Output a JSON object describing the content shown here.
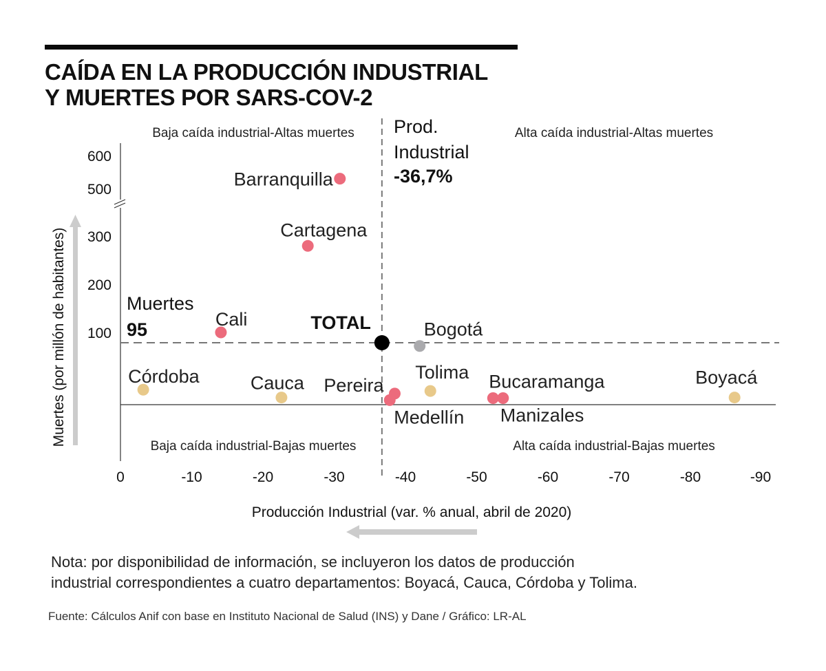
{
  "title": "CAÍDA EN LA PRODUCCIÓN INDUSTRIAL\nY MUERTES POR SARS-COV-2",
  "colors": {
    "high_deaths_city": "#ec6b7c",
    "department": "#e8c98a",
    "bogota": "#aaaaad",
    "total": "#000000",
    "arrow": "#cccccc",
    "reference_line": "#777777"
  },
  "chart_data": {
    "type": "scatter",
    "title": "CAÍDA EN LA PRODUCCIÓN INDUSTRIAL Y MUERTES POR SARS-COV-2",
    "xlabel": "Producción Industrial (var. % anual, abril de 2020)",
    "ylabel": "Muertes (por millón de habitantes)",
    "xlim": [
      0,
      -92
    ],
    "ylim": [
      0,
      620
    ],
    "y_axis_break": [
      330,
      480
    ],
    "x_ticks": [
      "0",
      "-10",
      "-20",
      "-30",
      "-40",
      "-50",
      "-60",
      "-70",
      "-80",
      "-90"
    ],
    "x_tick_values": [
      0,
      -10,
      -20,
      -30,
      -40,
      -50,
      -60,
      -70,
      -80,
      -90
    ],
    "y_ticks": [
      "100",
      "200",
      "300",
      "500",
      "600"
    ],
    "y_tick_values": [
      100,
      200,
      300,
      500,
      600
    ],
    "grid": false,
    "reference_lines": {
      "x": {
        "value": -36.7,
        "label_lines": [
          "Prod.",
          "Industrial",
          "-36,7%"
        ]
      },
      "y": {
        "value": 95,
        "label_lines": [
          "Muertes",
          "95"
        ]
      }
    },
    "quadrants": {
      "top_left": "Baja caída industrial-Altas muertes",
      "top_right": "Alta caída industrial-Altas muertes",
      "bottom_left": "Baja caída industrial-Bajas muertes",
      "bottom_right": "Alta caída industrial-Bajas muertes"
    },
    "points": [
      {
        "name": "Barranquilla",
        "x": -30.8,
        "y": 530,
        "group": "city"
      },
      {
        "name": "Cartagena",
        "x": -26.3,
        "y": 296,
        "group": "city"
      },
      {
        "name": "Cali",
        "x": -14.1,
        "y": 100,
        "group": "city"
      },
      {
        "name": "TOTAL",
        "x": -36.7,
        "y": 95,
        "group": "total"
      },
      {
        "name": "Bogotá",
        "x": -42.0,
        "y": 90,
        "group": "bogota"
      },
      {
        "name": "Córdoba",
        "x": -3.2,
        "y": 23,
        "group": "department"
      },
      {
        "name": "Cauca",
        "x": -22.6,
        "y": 11,
        "group": "department"
      },
      {
        "name": "Pereira",
        "x": -38.5,
        "y": 17,
        "group": "city"
      },
      {
        "name": "Medellín",
        "x": -37.8,
        "y": 7,
        "group": "city"
      },
      {
        "name": "Tolima",
        "x": -43.5,
        "y": 21,
        "group": "department"
      },
      {
        "name": "Bucaramanga",
        "x": -52.3,
        "y": 10,
        "group": "city"
      },
      {
        "name": "Manizales",
        "x": -53.7,
        "y": 10,
        "group": "city"
      },
      {
        "name": "Boyacá",
        "x": -86.2,
        "y": 11,
        "group": "department"
      }
    ]
  },
  "note": "Nota: por disponibilidad de información, se incluyeron los datos de producción\nindustrial correspondientes a cuatro departamentos: Boyacá, Cauca, Córdoba y Tolima.",
  "source": "Fuente: Cálculos Anif con base en Instituto Nacional de Salud (INS) y Dane / Gráfico: LR-AL"
}
